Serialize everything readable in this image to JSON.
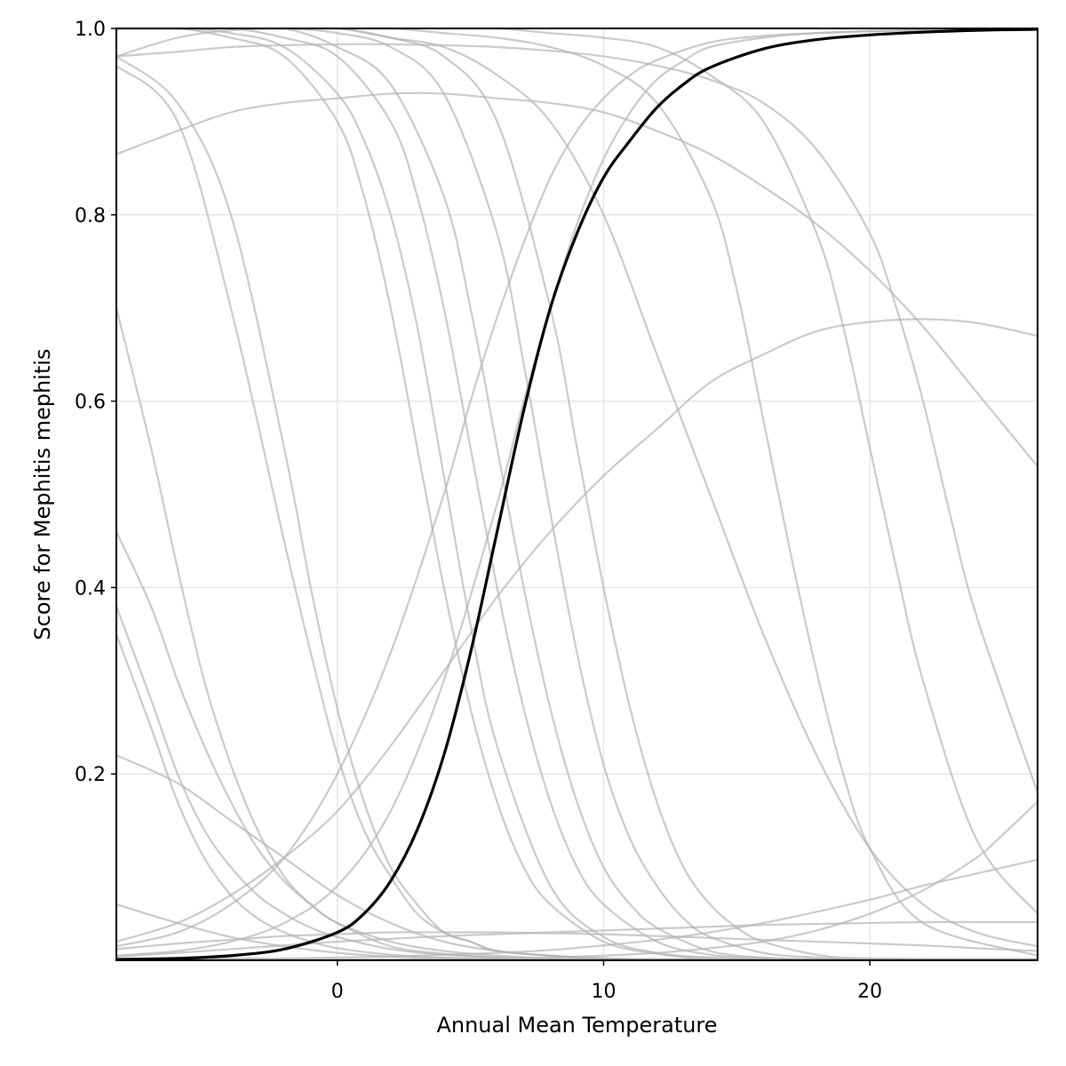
{
  "chart_data": {
    "type": "line",
    "title": "",
    "xlabel": "Annual Mean Temperature",
    "ylabel": "Score for Mephitis mephitis",
    "xlim": [
      -8.3,
      26.3
    ],
    "ylim": [
      0.0,
      1.0
    ],
    "x_ticks": [
      0,
      10,
      20
    ],
    "x_tick_labels": [
      "0",
      "10",
      "20"
    ],
    "y_ticks": [
      0.2,
      0.4,
      0.6,
      0.8,
      1.0
    ],
    "y_tick_labels": [
      "0.2",
      "0.4",
      "0.6",
      "0.8",
      "1.0"
    ],
    "grid": true,
    "legend": "none",
    "colors": {
      "highlight": "#000000",
      "background_series": "#b3b3b3",
      "grid": "#e6e6e6",
      "axis": "#000000"
    },
    "highlight_series": {
      "x": [
        -8.3,
        -6,
        -4,
        -2,
        0,
        1,
        2,
        3,
        4,
        5,
        6,
        7,
        8,
        9,
        10,
        11,
        12,
        13,
        14,
        16,
        18,
        20,
        22,
        24,
        26.3
      ],
      "y": [
        0.001,
        0.002,
        0.005,
        0.012,
        0.03,
        0.05,
        0.085,
        0.14,
        0.22,
        0.33,
        0.46,
        0.59,
        0.7,
        0.78,
        0.84,
        0.88,
        0.915,
        0.94,
        0.958,
        0.978,
        0.988,
        0.993,
        0.996,
        0.998,
        0.999
      ]
    },
    "series": [
      {
        "x": [
          -8.3,
          -6,
          -4,
          -2,
          0,
          2,
          4,
          6,
          8,
          10,
          12,
          14,
          16,
          18,
          20,
          22,
          24,
          26.3
        ],
        "y": [
          0.97,
          0.99,
          0.998,
          1.0,
          1.0,
          0.99,
          0.98,
          0.95,
          0.9,
          0.8,
          0.65,
          0.5,
          0.35,
          0.22,
          0.12,
          0.06,
          0.03,
          0.015
        ]
      },
      {
        "x": [
          -8.3,
          -6,
          -4,
          -2,
          -1,
          0,
          1,
          2,
          3,
          4,
          5,
          6,
          8,
          10,
          12,
          14,
          16,
          18,
          20,
          26.3
        ],
        "y": [
          0.97,
          0.92,
          0.8,
          0.55,
          0.4,
          0.27,
          0.17,
          0.1,
          0.06,
          0.03,
          0.02,
          0.01,
          0.005,
          0.002,
          0.001,
          0.001,
          0.001,
          0.001,
          0.001,
          0.001
        ]
      },
      {
        "x": [
          -8.3,
          -6,
          -4,
          -2,
          -1,
          0,
          1,
          2,
          3,
          4,
          5,
          6,
          8,
          10,
          12,
          14,
          26.3
        ],
        "y": [
          0.96,
          0.9,
          0.7,
          0.45,
          0.33,
          0.22,
          0.14,
          0.09,
          0.05,
          0.03,
          0.02,
          0.01,
          0.005,
          0.002,
          0.001,
          0.001,
          0.001
        ]
      },
      {
        "x": [
          -8.3,
          -7,
          -6,
          -5,
          -4,
          -3,
          -2,
          -1,
          0,
          2,
          4,
          6,
          8,
          10,
          14,
          18,
          22,
          26.3
        ],
        "y": [
          0.7,
          0.55,
          0.42,
          0.3,
          0.21,
          0.14,
          0.09,
          0.06,
          0.04,
          0.015,
          0.007,
          0.003,
          0.001,
          0.001,
          0.001,
          0.001,
          0.001,
          0.001
        ]
      },
      {
        "x": [
          -8.3,
          -7,
          -6,
          -5,
          -4,
          -3,
          -2,
          -1,
          0,
          2,
          4,
          6,
          8,
          10,
          14,
          18,
          22,
          26.3
        ],
        "y": [
          0.46,
          0.38,
          0.3,
          0.23,
          0.17,
          0.12,
          0.085,
          0.06,
          0.04,
          0.02,
          0.01,
          0.005,
          0.002,
          0.001,
          0.001,
          0.001,
          0.001,
          0.001
        ]
      },
      {
        "x": [
          -8.3,
          -7,
          -6,
          -5,
          -4,
          -3,
          -2,
          -1,
          0,
          2,
          4,
          6,
          8,
          10,
          14,
          18,
          26.3
        ],
        "y": [
          0.38,
          0.28,
          0.2,
          0.14,
          0.1,
          0.07,
          0.05,
          0.035,
          0.025,
          0.012,
          0.006,
          0.003,
          0.001,
          0.001,
          0.001,
          0.001,
          0.001
        ]
      },
      {
        "x": [
          -8.3,
          -7,
          -6,
          -5,
          -4,
          -3,
          -2,
          -1,
          0,
          2,
          4,
          6,
          8,
          10,
          14,
          18,
          26.3
        ],
        "y": [
          0.35,
          0.25,
          0.17,
          0.11,
          0.07,
          0.045,
          0.03,
          0.02,
          0.013,
          0.006,
          0.003,
          0.001,
          0.001,
          0.001,
          0.001,
          0.001,
          0.001
        ]
      },
      {
        "x": [
          -8.3,
          -6,
          -4,
          -2,
          0,
          2,
          4,
          6,
          8,
          10,
          12,
          14,
          16,
          18,
          26.3
        ],
        "y": [
          0.22,
          0.19,
          0.15,
          0.11,
          0.07,
          0.04,
          0.02,
          0.01,
          0.005,
          0.002,
          0.001,
          0.001,
          0.001,
          0.001,
          0.001
        ]
      },
      {
        "x": [
          -8.3,
          -6,
          -4,
          -2,
          0,
          2,
          4,
          6,
          8,
          10,
          12,
          16,
          20,
          26.3
        ],
        "y": [
          0.06,
          0.04,
          0.025,
          0.015,
          0.008,
          0.004,
          0.002,
          0.001,
          0.001,
          0.001,
          0.001,
          0.001,
          0.001,
          0.001
        ]
      },
      {
        "x": [
          -8.3,
          -6,
          -4,
          -2,
          0,
          1,
          2,
          3,
          4,
          5,
          6,
          8,
          10,
          12,
          14,
          16,
          18,
          20,
          26.3
        ],
        "y": [
          1.0,
          1.0,
          0.995,
          0.98,
          0.93,
          0.88,
          0.8,
          0.68,
          0.52,
          0.36,
          0.23,
          0.08,
          0.025,
          0.008,
          0.003,
          0.001,
          0.001,
          0.001,
          0.001
        ]
      },
      {
        "x": [
          -8.3,
          -6,
          -4,
          -2,
          0,
          1,
          2,
          3,
          4,
          5,
          6,
          7,
          8,
          10,
          12,
          14,
          16,
          18,
          20,
          26.3
        ],
        "y": [
          1.0,
          1.0,
          0.99,
          0.97,
          0.9,
          0.82,
          0.7,
          0.55,
          0.4,
          0.27,
          0.17,
          0.1,
          0.06,
          0.02,
          0.007,
          0.002,
          0.001,
          0.001,
          0.001,
          0.001
        ]
      },
      {
        "x": [
          -8.3,
          -6,
          -4,
          -2,
          0,
          2,
          3,
          4,
          5,
          6,
          7,
          8,
          9,
          10,
          12,
          14,
          16,
          18,
          20,
          26.3
        ],
        "y": [
          1.0,
          1.0,
          1.0,
          0.99,
          0.97,
          0.9,
          0.82,
          0.7,
          0.55,
          0.4,
          0.27,
          0.17,
          0.1,
          0.06,
          0.02,
          0.006,
          0.002,
          0.001,
          0.001,
          0.001
        ]
      },
      {
        "x": [
          -8.3,
          -6,
          -4,
          -2,
          0,
          2,
          4,
          5,
          6,
          7,
          8,
          9,
          10,
          11,
          12,
          14,
          16,
          18,
          20,
          26.3
        ],
        "y": [
          1.0,
          1.0,
          1.0,
          1.0,
          0.98,
          0.94,
          0.82,
          0.7,
          0.55,
          0.4,
          0.27,
          0.17,
          0.1,
          0.06,
          0.035,
          0.01,
          0.003,
          0.001,
          0.001,
          0.001
        ]
      },
      {
        "x": [
          -8.3,
          -6,
          -4,
          -2,
          0,
          2,
          4,
          6,
          7,
          8,
          9,
          10,
          11,
          12,
          13,
          14,
          16,
          18,
          20,
          26.3
        ],
        "y": [
          1.0,
          1.0,
          1.0,
          1.0,
          0.995,
          0.98,
          0.93,
          0.78,
          0.64,
          0.48,
          0.33,
          0.21,
          0.13,
          0.08,
          0.045,
          0.025,
          0.008,
          0.003,
          0.001,
          0.001
        ]
      },
      {
        "x": [
          -8.3,
          -6,
          -4,
          -2,
          0,
          2,
          4,
          6,
          8,
          9,
          10,
          11,
          12,
          13,
          14,
          15,
          16,
          18,
          20,
          26.3
        ],
        "y": [
          1.0,
          1.0,
          1.0,
          1.0,
          1.0,
          0.99,
          0.97,
          0.9,
          0.7,
          0.55,
          0.4,
          0.27,
          0.17,
          0.1,
          0.06,
          0.035,
          0.02,
          0.006,
          0.002,
          0.001
        ]
      },
      {
        "x": [
          -8.3,
          -6,
          -4,
          -2,
          0,
          2,
          4,
          6,
          8,
          10,
          12,
          14,
          15,
          16,
          17,
          18,
          19,
          20,
          22,
          26.3
        ],
        "y": [
          1.0,
          1.0,
          1.0,
          1.0,
          1.0,
          1.0,
          0.995,
          0.99,
          0.98,
          0.96,
          0.92,
          0.82,
          0.72,
          0.58,
          0.44,
          0.31,
          0.2,
          0.12,
          0.04,
          0.005
        ]
      },
      {
        "x": [
          -8.3,
          -6,
          -4,
          -2,
          0,
          2,
          4,
          6,
          8,
          10,
          12,
          14,
          16,
          18,
          19,
          20,
          21,
          22,
          24,
          26.3
        ],
        "y": [
          1.0,
          1.0,
          1.0,
          1.0,
          1.0,
          1.0,
          1.0,
          1.0,
          0.995,
          0.99,
          0.98,
          0.95,
          0.9,
          0.78,
          0.68,
          0.55,
          0.42,
          0.3,
          0.13,
          0.05
        ]
      },
      {
        "x": [
          -8.3,
          -6,
          -4,
          -2,
          0,
          2,
          4,
          6,
          8,
          10,
          12,
          14,
          16,
          18,
          20,
          21,
          22,
          23,
          24,
          26.3
        ],
        "y": [
          0.97,
          0.975,
          0.98,
          0.982,
          0.983,
          0.983,
          0.982,
          0.98,
          0.976,
          0.97,
          0.96,
          0.945,
          0.92,
          0.87,
          0.78,
          0.7,
          0.6,
          0.48,
          0.37,
          0.18
        ]
      },
      {
        "x": [
          -8.3,
          -6,
          -4,
          -2,
          0,
          2,
          4,
          6,
          8,
          10,
          12,
          14,
          16,
          18,
          20,
          22,
          24,
          26.3
        ],
        "y": [
          0.865,
          0.89,
          0.91,
          0.92,
          0.925,
          0.93,
          0.93,
          0.925,
          0.92,
          0.91,
          0.89,
          0.865,
          0.83,
          0.79,
          0.74,
          0.68,
          0.61,
          0.53
        ]
      },
      {
        "x": [
          -8.3,
          -6,
          -4,
          -2,
          0,
          2,
          4,
          6,
          8,
          10,
          12,
          14,
          16,
          18,
          20,
          22,
          24,
          26.3
        ],
        "y": [
          0.02,
          0.04,
          0.07,
          0.11,
          0.16,
          0.23,
          0.31,
          0.39,
          0.46,
          0.52,
          0.57,
          0.62,
          0.65,
          0.675,
          0.685,
          0.688,
          0.684,
          0.67
        ]
      },
      {
        "x": [
          -8.3,
          -6,
          -4,
          -2,
          0,
          2,
          4,
          5,
          6,
          7,
          8,
          9,
          10,
          11,
          12,
          14,
          16,
          18,
          20,
          22,
          24,
          26.3
        ],
        "y": [
          0.015,
          0.03,
          0.06,
          0.11,
          0.2,
          0.33,
          0.5,
          0.6,
          0.69,
          0.77,
          0.84,
          0.89,
          0.925,
          0.95,
          0.966,
          0.985,
          0.992,
          0.995,
          0.997,
          0.998,
          0.999,
          0.999
        ]
      },
      {
        "x": [
          -8.3,
          -6,
          -4,
          -2,
          0,
          2,
          4,
          6,
          7,
          8,
          9,
          10,
          11,
          12,
          13,
          14,
          16,
          18,
          20,
          22,
          24,
          26.3
        ],
        "y": [
          0.005,
          0.01,
          0.02,
          0.04,
          0.08,
          0.16,
          0.3,
          0.49,
          0.6,
          0.7,
          0.79,
          0.86,
          0.91,
          0.945,
          0.965,
          0.98,
          0.99,
          0.995,
          0.997,
          0.998,
          0.999,
          0.999
        ]
      },
      {
        "x": [
          -8.3,
          -6,
          -4,
          -2,
          0,
          2,
          4,
          6,
          8,
          10,
          12,
          14,
          16,
          18,
          20,
          22,
          24,
          26.3
        ],
        "y": [
          0.012,
          0.018,
          0.022,
          0.026,
          0.028,
          0.03,
          0.03,
          0.03,
          0.029,
          0.028,
          0.026,
          0.024,
          0.022,
          0.02,
          0.018,
          0.016,
          0.013,
          0.01
        ]
      },
      {
        "x": [
          -8.3,
          -6,
          -4,
          -2,
          0,
          2,
          4,
          6,
          8,
          10,
          12,
          14,
          16,
          18,
          20,
          22,
          24,
          26.3
        ],
        "y": [
          0.004,
          0.008,
          0.012,
          0.016,
          0.02,
          0.023,
          0.026,
          0.028,
          0.03,
          0.032,
          0.034,
          0.036,
          0.038,
          0.039,
          0.04,
          0.041,
          0.041,
          0.041
        ]
      },
      {
        "x": [
          -8.3,
          -6,
          -4,
          -2,
          0,
          2,
          4,
          6,
          8,
          10,
          12,
          14,
          16,
          18,
          20,
          22,
          24,
          26.3
        ],
        "y": [
          0.001,
          0.001,
          0.002,
          0.002,
          0.003,
          0.004,
          0.006,
          0.008,
          0.011,
          0.016,
          0.022,
          0.03,
          0.04,
          0.052,
          0.065,
          0.08,
          0.093,
          0.108
        ]
      },
      {
        "x": [
          -8.3,
          -6,
          -4,
          -2,
          0,
          2,
          4,
          6,
          8,
          10,
          12,
          14,
          16,
          18,
          20,
          22,
          24,
          25,
          26.3
        ],
        "y": [
          0.001,
          0.001,
          0.001,
          0.001,
          0.001,
          0.001,
          0.001,
          0.002,
          0.003,
          0.005,
          0.008,
          0.013,
          0.02,
          0.032,
          0.05,
          0.075,
          0.11,
          0.135,
          0.17
        ]
      }
    ]
  }
}
